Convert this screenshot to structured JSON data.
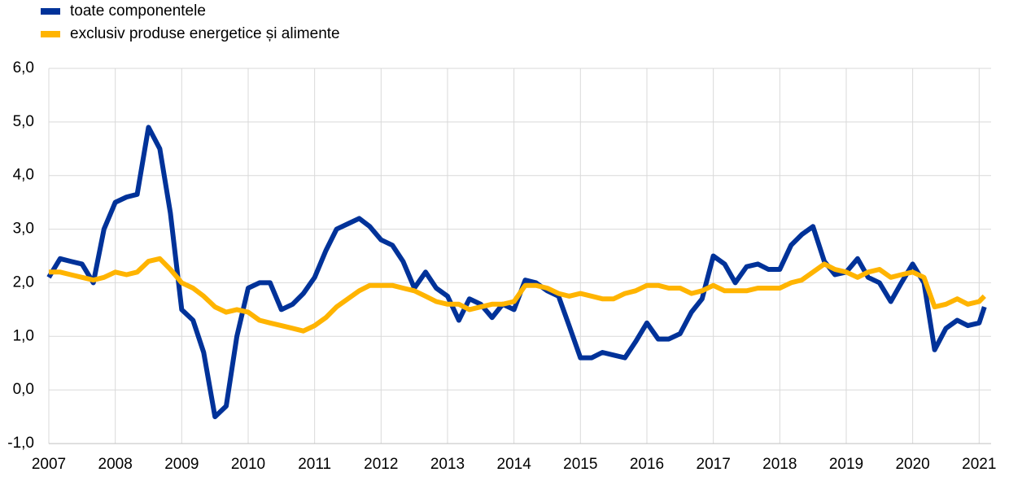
{
  "chart_data": {
    "type": "line",
    "x": [
      2007,
      2007.17,
      2007.33,
      2007.5,
      2007.67,
      2007.83,
      2008,
      2008.17,
      2008.33,
      2008.5,
      2008.67,
      2008.83,
      2009,
      2009.17,
      2009.33,
      2009.5,
      2009.67,
      2009.83,
      2010,
      2010.17,
      2010.33,
      2010.5,
      2010.67,
      2010.83,
      2011,
      2011.17,
      2011.33,
      2011.5,
      2011.67,
      2011.83,
      2012,
      2012.17,
      2012.33,
      2012.5,
      2012.67,
      2012.83,
      2013,
      2013.17,
      2013.33,
      2013.5,
      2013.67,
      2013.83,
      2014,
      2014.17,
      2014.33,
      2014.5,
      2014.67,
      2014.83,
      2015,
      2015.17,
      2015.33,
      2015.5,
      2015.67,
      2015.83,
      2016,
      2016.17,
      2016.33,
      2016.5,
      2016.67,
      2016.83,
      2017,
      2017.17,
      2017.33,
      2017.5,
      2017.67,
      2017.83,
      2018,
      2018.17,
      2018.33,
      2018.5,
      2018.67,
      2018.83,
      2019,
      2019.17,
      2019.33,
      2019.5,
      2019.67,
      2019.83,
      2020,
      2020.17,
      2020.33,
      2020.5,
      2020.67,
      2020.83,
      2021,
      2021.08
    ],
    "series": [
      {
        "name": "toate componentele",
        "color": "#003299",
        "values": [
          2.1,
          2.45,
          2.4,
          2.35,
          2.0,
          3.0,
          3.5,
          3.6,
          3.65,
          4.9,
          4.5,
          3.3,
          1.5,
          1.3,
          0.7,
          -0.5,
          -0.3,
          1.0,
          1.9,
          2.0,
          2.0,
          1.5,
          1.6,
          1.8,
          2.1,
          2.6,
          3.0,
          3.1,
          3.2,
          3.05,
          2.8,
          2.7,
          2.4,
          1.9,
          2.2,
          1.9,
          1.75,
          1.3,
          1.7,
          1.6,
          1.35,
          1.6,
          1.5,
          2.05,
          2.0,
          1.85,
          1.75,
          1.2,
          0.6,
          0.6,
          0.7,
          0.65,
          0.6,
          0.9,
          1.25,
          0.95,
          0.95,
          1.05,
          1.45,
          1.7,
          2.5,
          2.35,
          2.0,
          2.3,
          2.35,
          2.25,
          2.25,
          2.7,
          2.9,
          3.05,
          2.4,
          2.15,
          2.2,
          2.45,
          2.1,
          2.0,
          1.65,
          2.0,
          2.35,
          2.0,
          0.75,
          1.15,
          1.3,
          1.2,
          1.25,
          1.55
        ]
      },
      {
        "name": "exclusiv produse energetice și alimente",
        "color": "#ffb400",
        "values": [
          2.2,
          2.2,
          2.15,
          2.1,
          2.05,
          2.1,
          2.2,
          2.15,
          2.2,
          2.4,
          2.45,
          2.25,
          2.0,
          1.9,
          1.75,
          1.55,
          1.45,
          1.5,
          1.45,
          1.3,
          1.25,
          1.2,
          1.15,
          1.1,
          1.2,
          1.35,
          1.55,
          1.7,
          1.85,
          1.95,
          1.95,
          1.95,
          1.9,
          1.85,
          1.75,
          1.65,
          1.6,
          1.6,
          1.5,
          1.55,
          1.6,
          1.6,
          1.65,
          1.95,
          1.95,
          1.9,
          1.8,
          1.75,
          1.8,
          1.75,
          1.7,
          1.7,
          1.8,
          1.85,
          1.95,
          1.95,
          1.9,
          1.9,
          1.8,
          1.85,
          1.95,
          1.85,
          1.85,
          1.85,
          1.9,
          1.9,
          1.9,
          2.0,
          2.05,
          2.2,
          2.35,
          2.25,
          2.2,
          2.1,
          2.2,
          2.25,
          2.1,
          2.15,
          2.2,
          2.1,
          1.55,
          1.6,
          1.7,
          1.6,
          1.65,
          1.75
        ]
      }
    ],
    "xlim": [
      2007,
      2021.18
    ],
    "xticks": [
      2007,
      2008,
      2009,
      2010,
      2011,
      2012,
      2013,
      2014,
      2015,
      2016,
      2017,
      2018,
      2019,
      2020,
      2021
    ],
    "ylim": [
      -1,
      6
    ],
    "yticks": [
      {
        "value": -1,
        "label": "-1,0"
      },
      {
        "value": 0,
        "label": "0,0"
      },
      {
        "value": 1,
        "label": "1,0"
      },
      {
        "value": 2,
        "label": "2,0"
      },
      {
        "value": 3,
        "label": "3,0"
      },
      {
        "value": 4,
        "label": "4,0"
      },
      {
        "value": 5,
        "label": "5,0"
      },
      {
        "value": 6,
        "label": "6,0"
      }
    ],
    "grid": true,
    "legend": "top-left"
  }
}
